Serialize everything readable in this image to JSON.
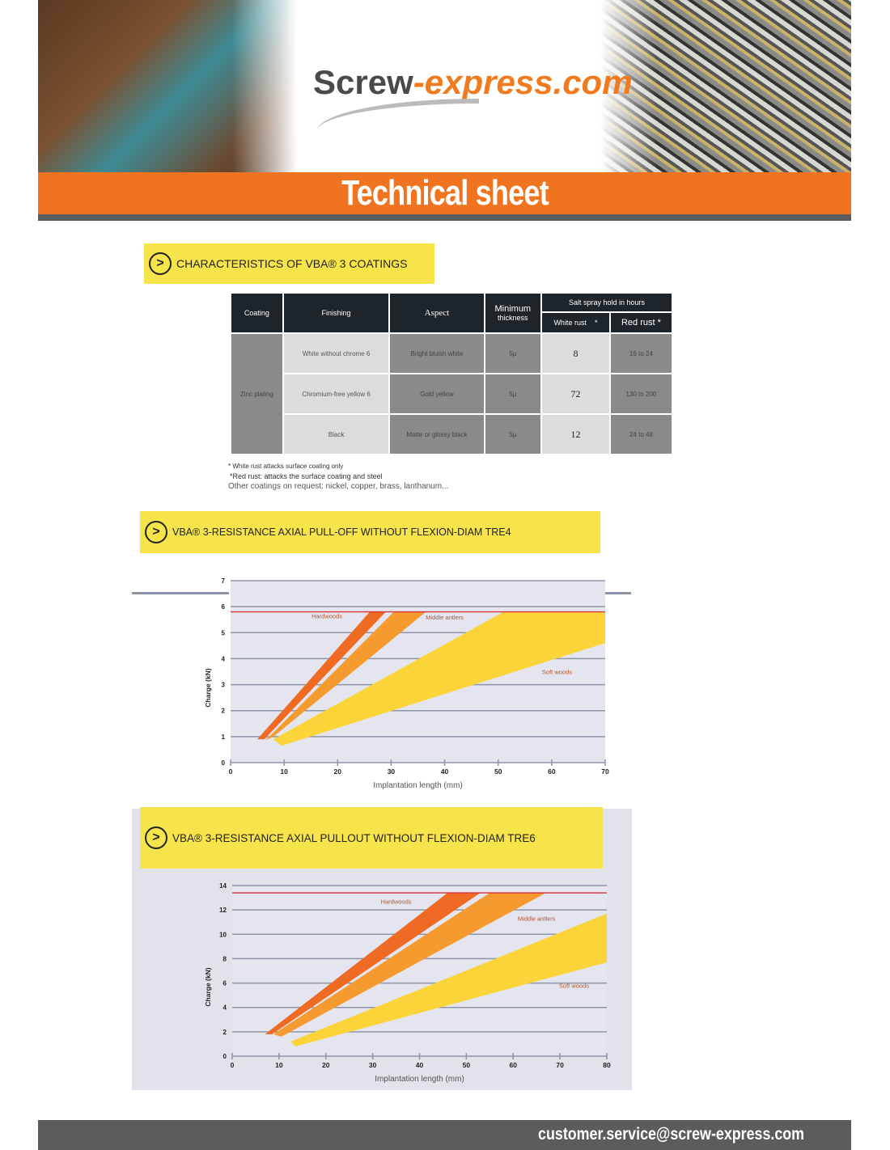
{
  "header": {
    "logo_main": "Screw",
    "logo_accent": "-express.com",
    "title": "Technical sheet"
  },
  "section1": {
    "title": "CHARACTERISTICS OF VBA® 3 COATINGS",
    "icon": "arrow-right-circle-icon"
  },
  "table": {
    "headers": [
      "Coating",
      "Finishing",
      "Aspect",
      "Minimum",
      "thickness",
      "Salt spray hold in hours",
      "White rust",
      "*",
      "Red rust *"
    ],
    "coating": "Zinc plating",
    "rows": [
      {
        "finishing": "White without chrome 6",
        "aspect": "Bright bluish white",
        "thickness": "5µ",
        "white_rust": "8",
        "red_rust": "16 to 24"
      },
      {
        "finishing": "Chromium-free yellow 6",
        "aspect": "Gold yellow",
        "thickness": "5µ",
        "white_rust": "72",
        "red_rust": "130 to 200"
      },
      {
        "finishing": "Black",
        "aspect": "Matte or glossy black",
        "thickness": "5µ",
        "white_rust": "12",
        "red_rust": "24 to 48"
      }
    ]
  },
  "notes": [
    "* White rust attacks surface coating only",
    "*Red rust: attacks the surface coating and steel",
    "Other coatings on request: nickel, copper, brass, lanthanum..."
  ],
  "section2": {
    "title": "VBA® 3-RESISTANCE AXIAL PULL-OFF WITHOUT FLEXION-DIAM TRE4"
  },
  "section3": {
    "title": "VBA® 3-RESISTANCE AXIAL PULLOUT WITHOUT FLEXION-DIAM TRE6"
  },
  "footer": {
    "email": "customer.service@screw-express.com"
  },
  "colors": {
    "orange": "#f07420",
    "yellow": "#f7e34a",
    "dark": "#1d242a",
    "limit_line": "#d9333a",
    "hardwoods": "#ef6a22",
    "middle": "#f59a2e",
    "soft": "#fbd43a"
  },
  "chart_data": [
    {
      "type": "area",
      "xlabel": "Implantation length (mm)",
      "ylabel": "Charge (kN)",
      "xlim": [
        0,
        70
      ],
      "ylim": [
        0,
        7
      ],
      "xticks": [
        0,
        10,
        20,
        30,
        40,
        50,
        60,
        70
      ],
      "yticks": [
        0,
        1,
        2,
        3,
        4,
        5,
        6,
        7
      ],
      "grid": true,
      "limit_line": 5.8,
      "series": [
        {
          "name": "Hardwoods",
          "color": "#ef6a22",
          "polygon": [
            [
              5,
              0.9
            ],
            [
              6.3,
              0.9
            ],
            [
              29,
              5.8
            ],
            [
              26,
              5.8
            ]
          ],
          "label_at": [
            18,
            5.55
          ]
        },
        {
          "name": "Middle antlers",
          "color": "#f59a2e",
          "polygon": [
            [
              6.5,
              0.85
            ],
            [
              8,
              1.0
            ],
            [
              36.5,
              5.8
            ],
            [
              30.5,
              5.8
            ]
          ],
          "label_at": [
            40,
            5.5
          ]
        },
        {
          "name": "Soft woods",
          "color": "#fbd43a",
          "polygon": [
            [
              8,
              0.9
            ],
            [
              9.5,
              0.65
            ],
            [
              70,
              4.6
            ],
            [
              70,
              5.8
            ],
            [
              51,
              5.8
            ]
          ],
          "label_at": [
            61,
            3.4
          ]
        }
      ]
    },
    {
      "type": "area",
      "xlabel": "Implantation length (mm)",
      "ylabel": "Charge (kN)",
      "xlim": [
        0,
        80
      ],
      "ylim": [
        0,
        14
      ],
      "xticks": [
        0,
        10,
        20,
        30,
        40,
        50,
        60,
        70,
        80
      ],
      "yticks": [
        0,
        2,
        4,
        6,
        8,
        10,
        12,
        14
      ],
      "grid": true,
      "limit_line": 13.4,
      "series": [
        {
          "name": "Hardwoods",
          "color": "#ef6a22",
          "polygon": [
            [
              7,
              1.8
            ],
            [
              8.5,
              1.8
            ],
            [
              53,
              13.4
            ],
            [
              46,
              13.4
            ]
          ],
          "label_at": [
            35,
            12.5
          ]
        },
        {
          "name": "Middle antlers",
          "color": "#f59a2e",
          "polygon": [
            [
              8.8,
              1.8
            ],
            [
              10.5,
              1.6
            ],
            [
              67,
              13.4
            ],
            [
              55,
              13.4
            ]
          ],
          "label_at": [
            65,
            11.1
          ]
        },
        {
          "name": "Soft woods",
          "color": "#fbd43a",
          "polygon": [
            [
              12.5,
              1.2
            ],
            [
              13.5,
              0.8
            ],
            [
              80,
              7.7
            ],
            [
              80,
              11.7
            ]
          ],
          "label_at": [
            73,
            5.6
          ]
        }
      ]
    }
  ]
}
